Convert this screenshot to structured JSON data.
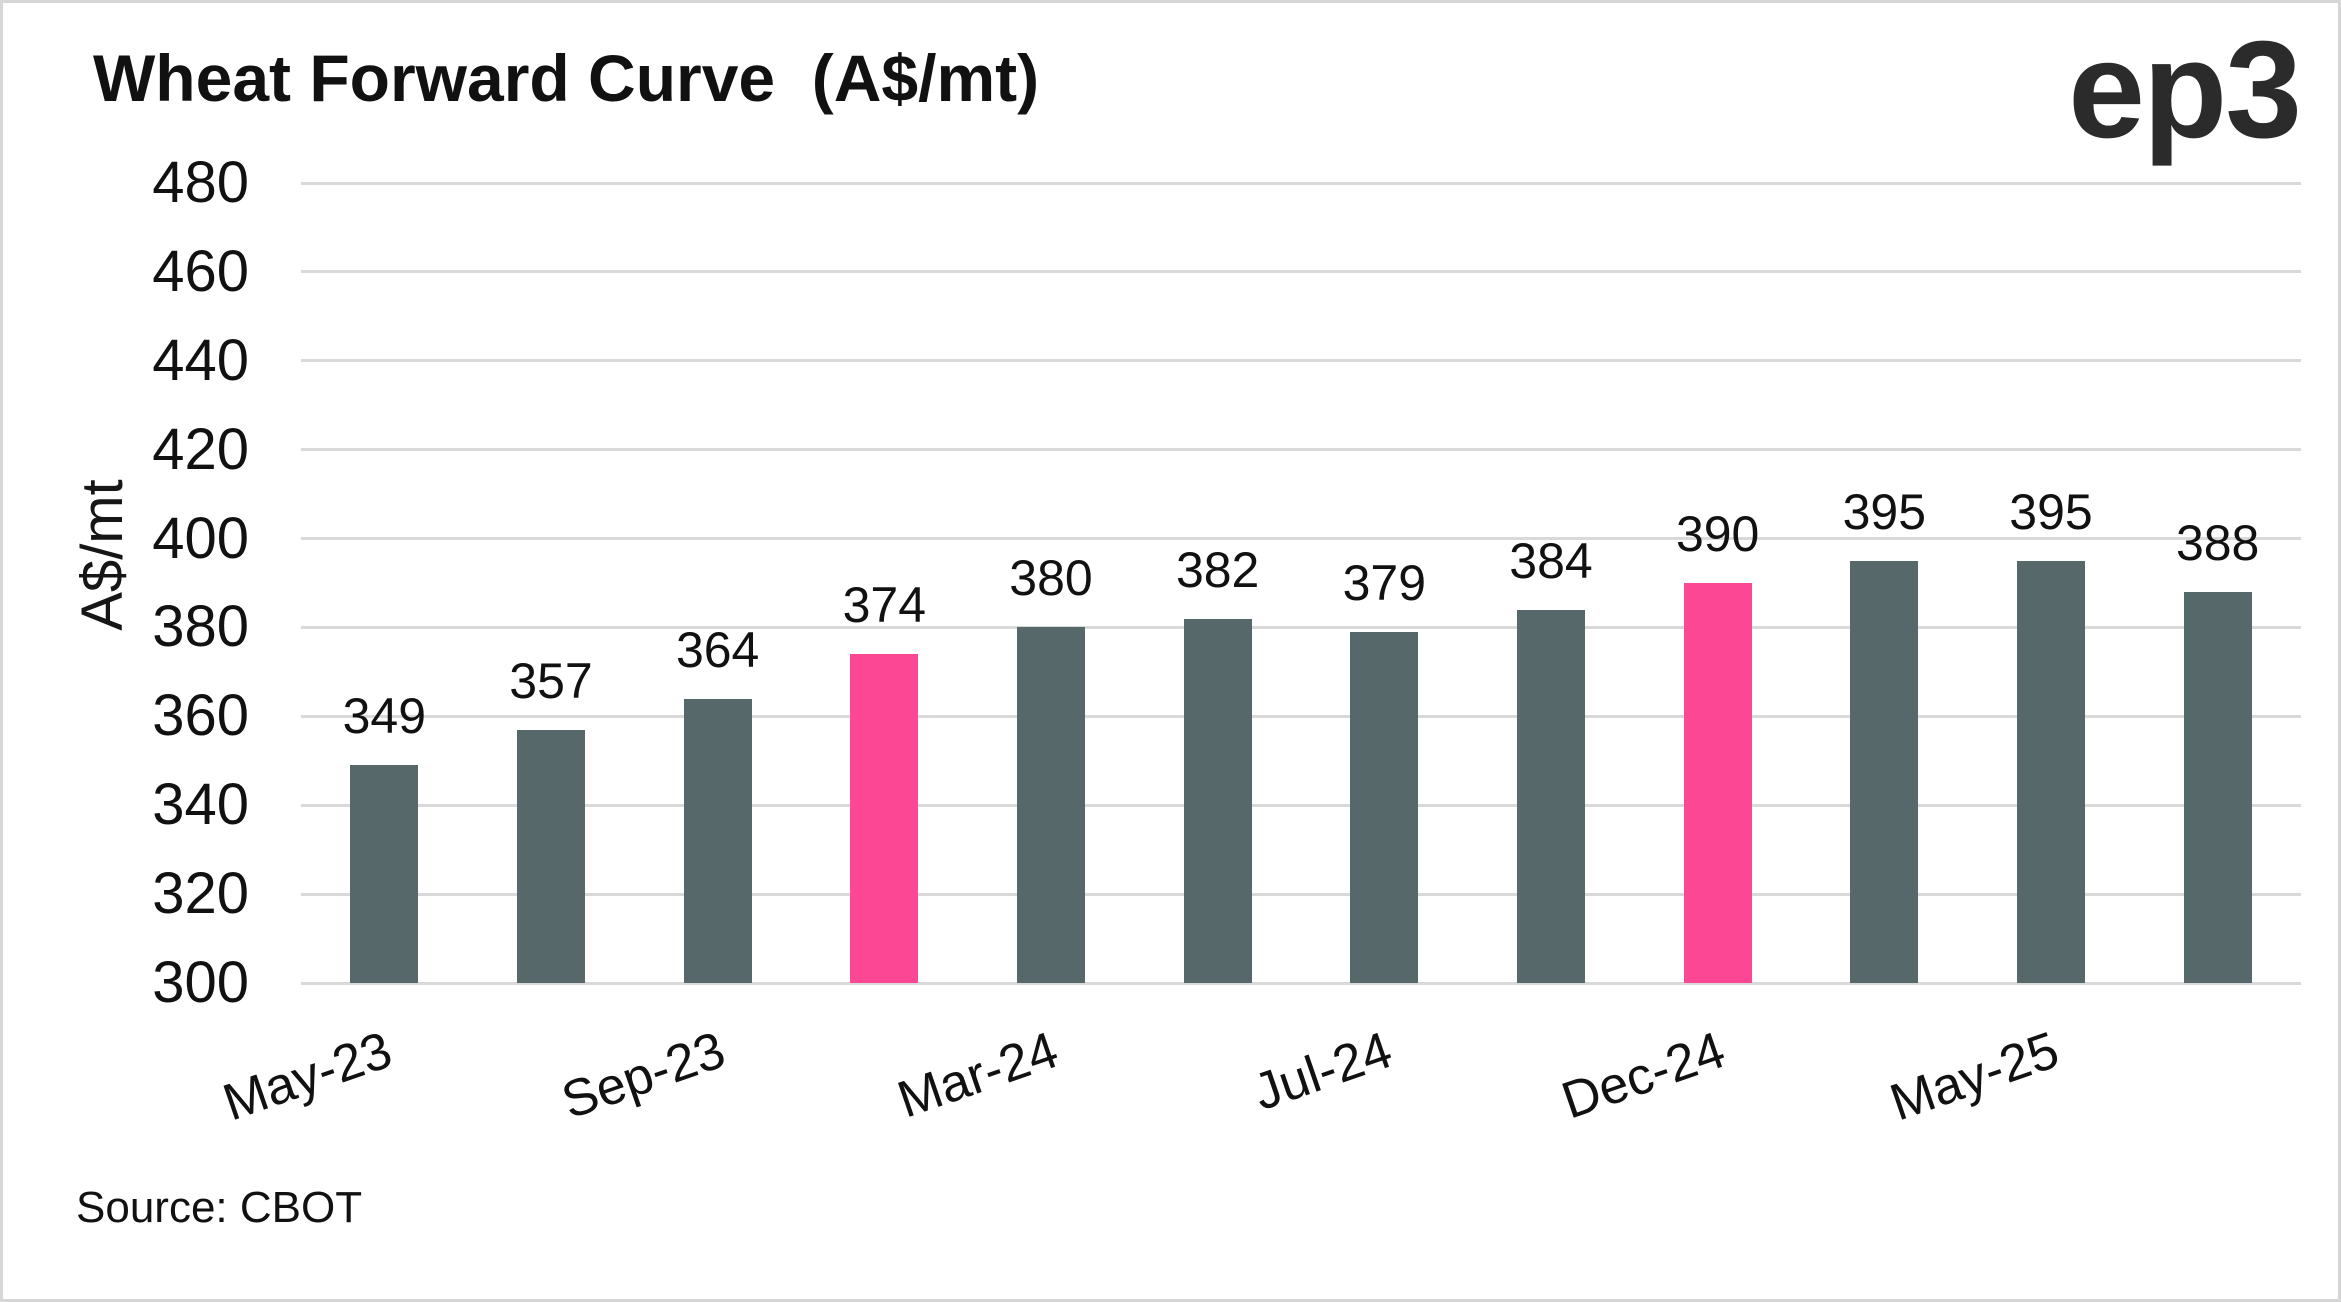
{
  "header": {
    "title": "Wheat Forward Curve  (A$/mt)",
    "logo": "ep3"
  },
  "footer": {
    "source": "Source: CBOT"
  },
  "chart_data": {
    "type": "bar",
    "title": "Wheat Forward Curve  (A$/mt)",
    "ylabel": "A$/mt",
    "ylim": [
      300,
      480
    ],
    "ytick_step": 20,
    "yticks": [
      480,
      460,
      440,
      420,
      400,
      380,
      360,
      340,
      320,
      300
    ],
    "grid": "horizontal",
    "legend": "none",
    "values": [
      349,
      357,
      364,
      374,
      380,
      382,
      379,
      384,
      390,
      395,
      395,
      388
    ],
    "highlight_indices": [
      3,
      8
    ],
    "colors": {
      "bar": "#57686b",
      "highlight": "#fc4795",
      "gridline": "#d9d9d9"
    },
    "x_ticks": [
      {
        "label": "May-23",
        "bar_index": 0
      },
      {
        "label": "Sep-23",
        "bar_index": 2
      },
      {
        "label": "Mar-24",
        "bar_index": 4
      },
      {
        "label": "Jul-24",
        "bar_index": 6
      },
      {
        "label": "Dec-24",
        "bar_index": 8
      },
      {
        "label": "May-25",
        "bar_index": 10
      }
    ]
  }
}
